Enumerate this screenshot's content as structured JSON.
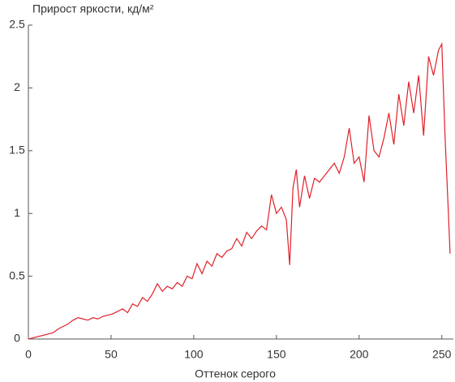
{
  "chart_data": {
    "type": "line",
    "title": "Прирост яркости, кд/м²",
    "x_label": "Оттенок серого",
    "x": [
      0,
      3,
      6,
      9,
      12,
      15,
      18,
      21,
      24,
      27,
      30,
      33,
      36,
      39,
      42,
      45,
      48,
      51,
      54,
      57,
      60,
      63,
      66,
      69,
      72,
      75,
      78,
      81,
      84,
      87,
      90,
      93,
      96,
      99,
      102,
      105,
      108,
      111,
      114,
      117,
      120,
      123,
      126,
      129,
      132,
      135,
      138,
      141,
      144,
      147,
      150,
      153,
      156,
      158,
      160,
      162,
      164,
      167,
      170,
      173,
      176,
      179,
      182,
      185,
      188,
      191,
      194,
      197,
      200,
      203,
      206,
      209,
      212,
      215,
      218,
      221,
      224,
      227,
      230,
      233,
      236,
      239,
      242,
      245,
      248,
      250,
      252,
      254,
      255
    ],
    "series": [
      {
        "name": "Прирост яркости",
        "color": "#e0202a",
        "values": [
          0.0,
          0.01,
          0.02,
          0.03,
          0.04,
          0.05,
          0.08,
          0.1,
          0.12,
          0.15,
          0.17,
          0.16,
          0.15,
          0.17,
          0.16,
          0.18,
          0.19,
          0.2,
          0.22,
          0.24,
          0.21,
          0.28,
          0.26,
          0.33,
          0.3,
          0.36,
          0.44,
          0.38,
          0.42,
          0.4,
          0.45,
          0.42,
          0.5,
          0.48,
          0.6,
          0.52,
          0.62,
          0.58,
          0.68,
          0.65,
          0.7,
          0.72,
          0.8,
          0.74,
          0.85,
          0.8,
          0.86,
          0.9,
          0.87,
          1.15,
          1.0,
          1.05,
          0.95,
          0.59,
          1.2,
          1.35,
          1.05,
          1.3,
          1.12,
          1.28,
          1.25,
          1.3,
          1.35,
          1.4,
          1.32,
          1.45,
          1.68,
          1.4,
          1.45,
          1.25,
          1.78,
          1.5,
          1.45,
          1.6,
          1.8,
          1.55,
          1.95,
          1.7,
          2.05,
          1.8,
          2.1,
          1.62,
          2.25,
          2.1,
          2.3,
          2.35,
          1.6,
          1.0,
          0.68
        ]
      }
    ],
    "xlim": [
      0,
      257
    ],
    "xticks": [
      0,
      50,
      100,
      150,
      200,
      250
    ],
    "ylim": [
      0,
      2.5
    ],
    "yticks": [
      0,
      0.5,
      1,
      1.5,
      2,
      2.5
    ],
    "grid": false
  }
}
